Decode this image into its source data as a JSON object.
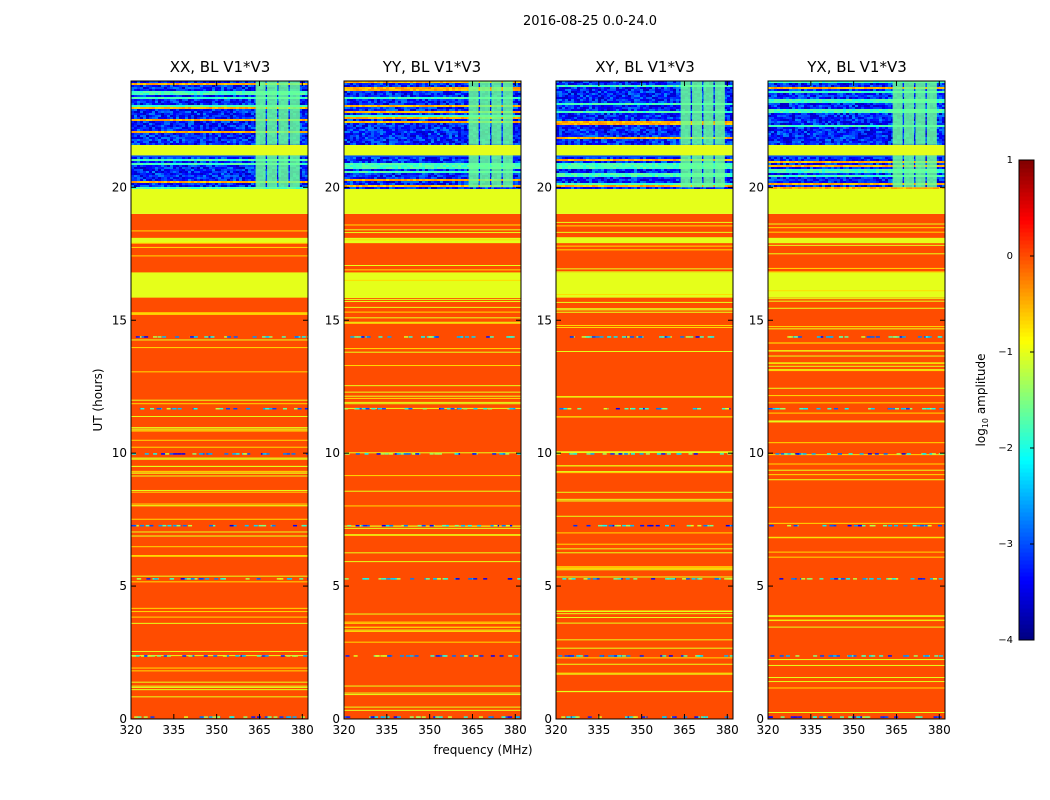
{
  "suptitle": "2016-08-25 0.0-24.0",
  "chart_data": {
    "type": "heatmap",
    "ylabel": "UT (hours)",
    "xlabel": "frequency (MHz)",
    "xlim": [
      320,
      382
    ],
    "ylim": [
      0,
      24
    ],
    "xticks": [
      320,
      335,
      350,
      365,
      380
    ],
    "yticks": [
      0,
      5,
      10,
      15,
      20
    ],
    "colorbar": {
      "label": "log10 amplitude",
      "label_main": "log",
      "label_sub": "10",
      "label_rest": " amplitude",
      "range": [
        -4,
        1
      ],
      "ticks": [
        -4,
        -3,
        -2,
        -1,
        0,
        1
      ],
      "tick_labels": [
        "−4",
        "−3",
        "−2",
        "−1",
        "0",
        "1"
      ],
      "colormap": "jet"
    },
    "panels": [
      {
        "title": "XX, BL V1*V3"
      },
      {
        "title": "YY, BL V1*V3"
      },
      {
        "title": "XY, BL V1*V3"
      },
      {
        "title": "YX, BL V1*V3"
      }
    ],
    "dominant_value_log10": 0.0,
    "bands": [
      {
        "y0": 0,
        "y1": 19.0,
        "value": 0.0
      },
      {
        "y0": 15.85,
        "y1": 16.8,
        "value": -1.0
      },
      {
        "y0": 17.9,
        "y1": 18.1,
        "value": -1.0
      },
      {
        "y0": 19.0,
        "y1": 20.0,
        "value": -1.0
      },
      {
        "y0": 20.0,
        "y1": 24.0,
        "value": -3.0
      },
      {
        "y0": 21.2,
        "y1": 21.6,
        "value": -1.0
      }
    ],
    "rfi_channels_mhz": [
      364,
      368,
      372,
      376
    ],
    "colors": {
      "dominant": "#ff6600",
      "green": "#a6ff50",
      "noise": "#1a3dff",
      "cyan": "#3cffc0"
    }
  }
}
